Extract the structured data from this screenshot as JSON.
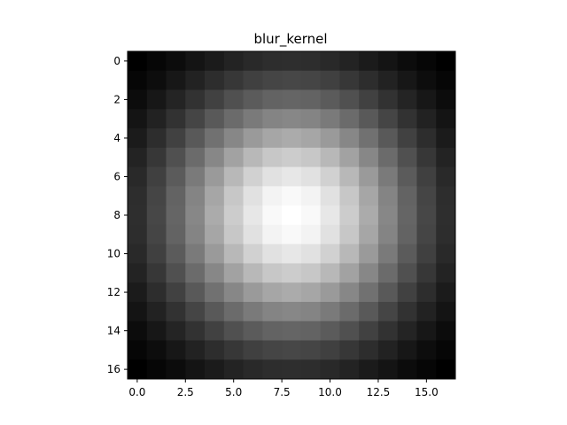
{
  "chart_data": {
    "type": "heatmap",
    "title": "blur_kernel",
    "xlabel": "",
    "ylabel": "",
    "rows": 17,
    "cols": 17,
    "center": [
      8,
      8
    ],
    "sigma": 4.6,
    "colormap": "gray",
    "value_range": [
      0,
      1
    ],
    "xlim": [
      -0.5,
      16.5
    ],
    "ylim": [
      16.5,
      -0.5
    ],
    "x_ticks": [
      {
        "value": 0,
        "label": "0.0"
      },
      {
        "value": 2.5,
        "label": "2.5"
      },
      {
        "value": 5,
        "label": "5.0"
      },
      {
        "value": 7.5,
        "label": "7.5"
      },
      {
        "value": 10,
        "label": "10.0"
      },
      {
        "value": 12.5,
        "label": "12.5"
      },
      {
        "value": 15,
        "label": "15.0"
      }
    ],
    "y_ticks": [
      {
        "value": 0,
        "label": "0"
      },
      {
        "value": 2,
        "label": "2"
      },
      {
        "value": 4,
        "label": "4"
      },
      {
        "value": 6,
        "label": "6"
      },
      {
        "value": 8,
        "label": "8"
      },
      {
        "value": 10,
        "label": "10"
      },
      {
        "value": 12,
        "label": "12"
      },
      {
        "value": 14,
        "label": "14"
      },
      {
        "value": 16,
        "label": "16"
      }
    ],
    "grid": false,
    "legend": "none"
  }
}
